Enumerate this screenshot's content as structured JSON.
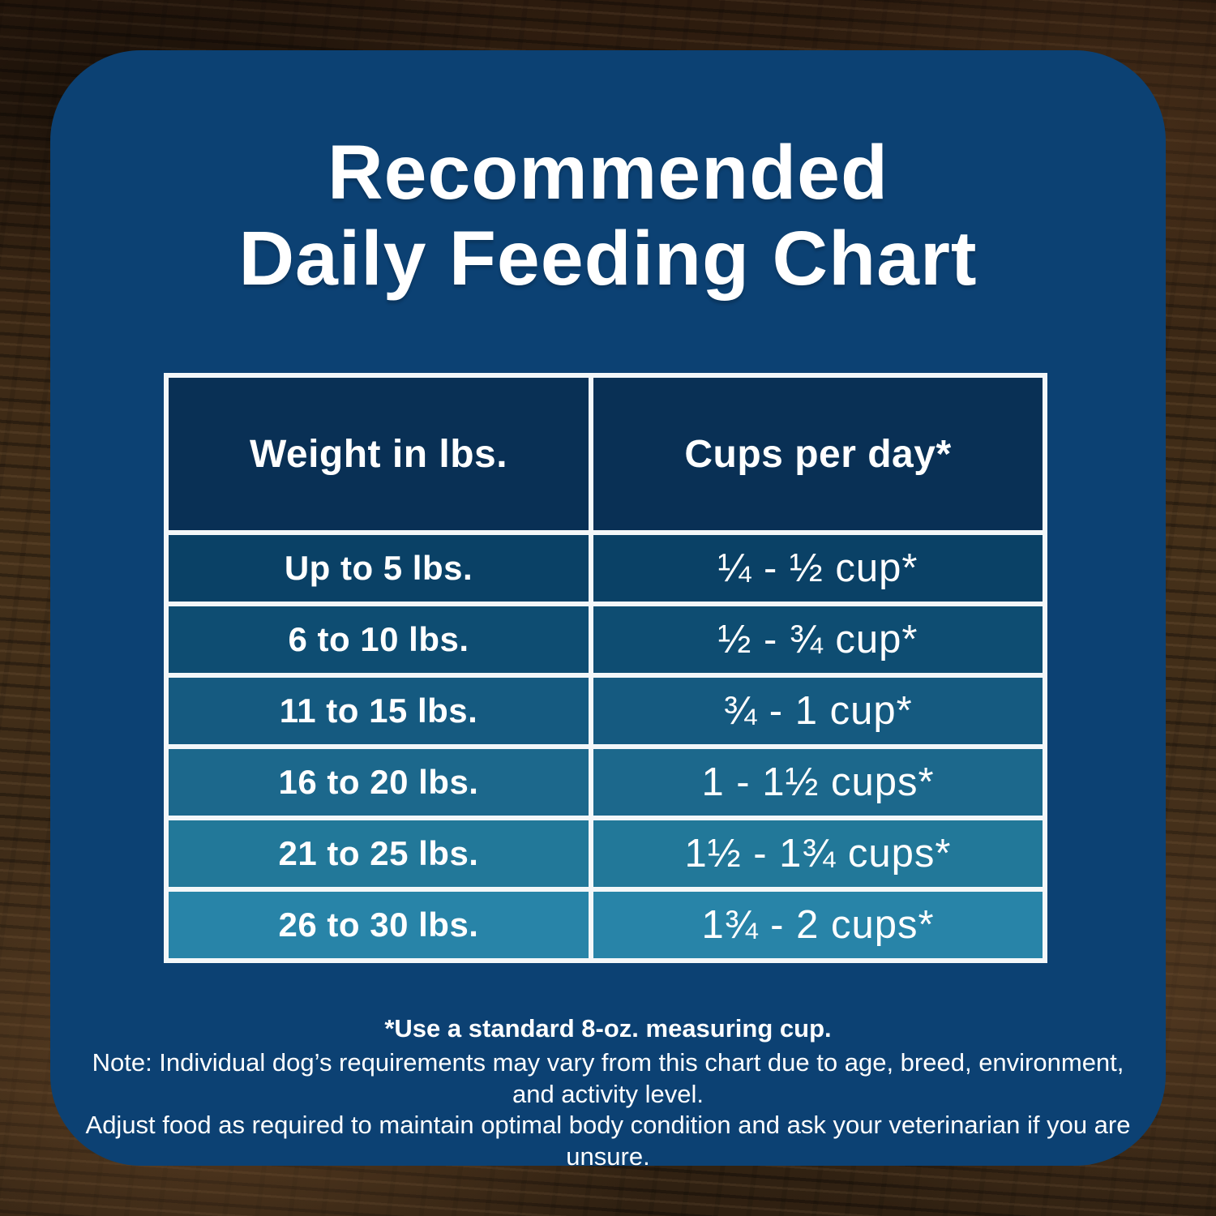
{
  "title": {
    "line1": "Recommended",
    "line2": "Daily Feeding Chart"
  },
  "table": {
    "col1_header": "Weight in lbs.",
    "col2_header": "Cups per day*",
    "rows": [
      {
        "weight": "Up to 5 lbs.",
        "cups": "¼ - ½ cup*",
        "color": "#0a4166"
      },
      {
        "weight": "6 to 10 lbs.",
        "cups": "½ - ¾ cup*",
        "color": "#0e4d72"
      },
      {
        "weight": "11 to 15 lbs.",
        "cups": "¾ - 1 cup*",
        "color": "#155a80"
      },
      {
        "weight": "16 to 20 lbs.",
        "cups": "1 - 1½ cups*",
        "color": "#1c688c"
      },
      {
        "weight": "21 to 25 lbs.",
        "cups": "1½ - 1¾ cups*",
        "color": "#227899"
      },
      {
        "weight": "26 to 30 lbs.",
        "cups": "1¾ - 2 cups*",
        "color": "#2884a8"
      }
    ]
  },
  "footnotes": {
    "line1": "*Use a standard 8-oz. measuring cup.",
    "line2": "Note: Individual dog’s requirements may vary from this chart due to age, breed, environment, and activity level.",
    "line3": "Adjust food as required to maintain optimal body condition and ask your veterinarian if you are unsure."
  },
  "colors": {
    "card_background": "#0c4173",
    "table_header_background": "#093055",
    "table_border": "#f3f7f9",
    "text": "#ffffff",
    "wood_dark": "#2c1b0e",
    "wood_light": "#6d4c2e"
  },
  "chart_data": {
    "type": "table",
    "title": "Recommended Daily Feeding Chart",
    "columns": [
      "Weight in lbs.",
      "Cups per day*"
    ],
    "rows": [
      [
        "Up to 5 lbs.",
        "¼ - ½ cup*"
      ],
      [
        "6 to 10 lbs.",
        "½ - ¾ cup*"
      ],
      [
        "11 to 15 lbs.",
        "¾ - 1 cup*"
      ],
      [
        "16 to 20 lbs.",
        "1 - 1½ cups*"
      ],
      [
        "21 to 25 lbs.",
        "1½ - 1¾ cups*"
      ],
      [
        "26 to 30 lbs.",
        "1¾ - 2 cups*"
      ]
    ],
    "footnotes": [
      "*Use a standard 8-oz. measuring cup.",
      "Note: Individual dog’s requirements may vary from this chart due to age, breed, environment, and activity level. Adjust food as required to maintain optimal body condition and ask your veterinarian if you are unsure."
    ],
    "layout_hints": {
      "row_background_gradient": [
        "#0a4166",
        "#2884a8"
      ],
      "header_background": "#093055",
      "grid": "white 6px borders"
    }
  }
}
